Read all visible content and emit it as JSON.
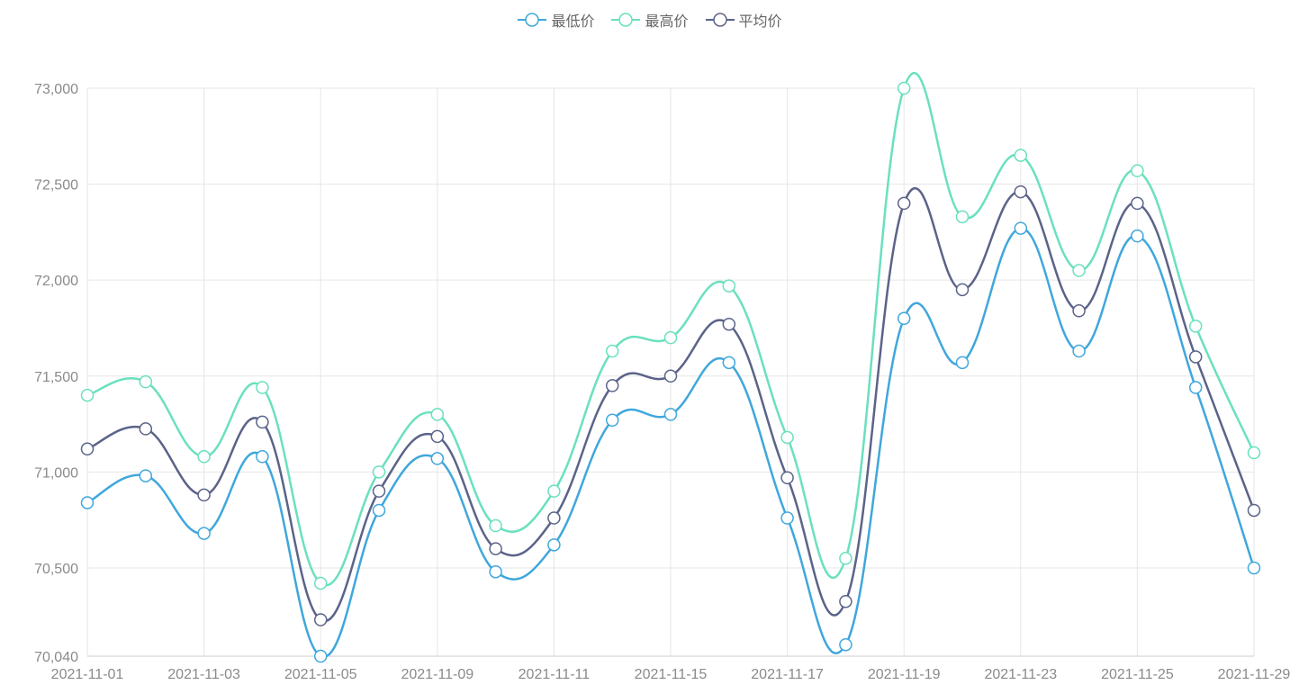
{
  "chart_data": {
    "type": "line",
    "smooth": true,
    "legend_position": "top-center",
    "grid": true,
    "categories": [
      "2021-11-01",
      "2021-11-02",
      "2021-11-03",
      "2021-11-04",
      "2021-11-05",
      "2021-11-06",
      "2021-11-09",
      "2021-11-10",
      "2021-11-11",
      "2021-11-12",
      "2021-11-15",
      "2021-11-16",
      "2021-11-17",
      "2021-11-18",
      "2021-11-19",
      "2021-11-22",
      "2021-11-23",
      "2021-11-24",
      "2021-11-25",
      "2021-11-26",
      "2021-11-29"
    ],
    "x_tick_labels": [
      "2021-11-01",
      "2021-11-03",
      "2021-11-05",
      "2021-11-09",
      "2021-11-11",
      "2021-11-15",
      "2021-11-17",
      "2021-11-19",
      "2021-11-23",
      "2021-11-25",
      "2021-11-29"
    ],
    "ylim": [
      70040,
      73000
    ],
    "y_tick_labels": [
      "70,040",
      "70,500",
      "71,000",
      "71,500",
      "72,000",
      "72,500",
      "73,000"
    ],
    "y_tick_values": [
      70040,
      70500,
      71000,
      71500,
      72000,
      72500,
      73000
    ],
    "series": [
      {
        "name": "最低价",
        "color": "#3fa7dc",
        "values": [
          70840,
          70980,
          70680,
          71080,
          70040,
          70800,
          71070,
          70480,
          70620,
          71270,
          71300,
          71570,
          70760,
          70100,
          71800,
          71570,
          72270,
          71630,
          72230,
          71440,
          70500
        ]
      },
      {
        "name": "最高价",
        "color": "#6ae0bf",
        "values": [
          71400,
          71470,
          71080,
          71440,
          70420,
          71000,
          71300,
          70720,
          70900,
          71630,
          71700,
          71970,
          71180,
          70550,
          73000,
          72330,
          72650,
          72050,
          72570,
          71760,
          71100
        ]
      },
      {
        "name": "平均价",
        "color": "#5b6389",
        "values": [
          71120,
          71225,
          70880,
          71260,
          70230,
          70900,
          71185,
          70600,
          70760,
          71450,
          71500,
          71770,
          70970,
          70325,
          72400,
          71950,
          72460,
          71840,
          72400,
          71600,
          70800
        ]
      }
    ]
  }
}
